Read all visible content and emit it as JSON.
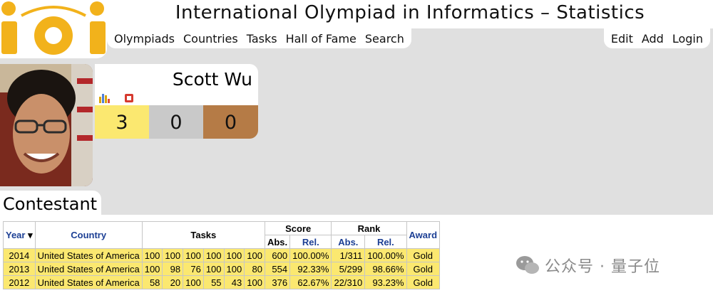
{
  "header": {
    "site_title": "International Olympiad in Informatics – Statistics",
    "logo_text": "ioi",
    "nav_left": [
      "Olympiads",
      "Countries",
      "Tasks",
      "Hall of Fame",
      "Search"
    ],
    "nav_right": [
      "Edit",
      "Add",
      "Login"
    ]
  },
  "profile": {
    "name": "Scott Wu",
    "icons": [
      "bar-chart-icon",
      "flag-icon"
    ],
    "medals": {
      "gold": "3",
      "silver": "0",
      "bronze": "0"
    }
  },
  "section_title": "Contestant",
  "table": {
    "headers": {
      "year": "Year",
      "year_sort": "▾",
      "country": "Country",
      "tasks": "Tasks",
      "score": "Score",
      "rank": "Rank",
      "award": "Award",
      "abs": "Abs.",
      "rel": "Rel."
    },
    "rows": [
      {
        "year": "2014",
        "country": "United States of America",
        "tasks": [
          "100",
          "100",
          "100",
          "100",
          "100",
          "100"
        ],
        "score_abs": "600",
        "score_rel": "100.00%",
        "rank_abs": "1/311",
        "rank_rel": "100.00%",
        "award": "Gold"
      },
      {
        "year": "2013",
        "country": "United States of America",
        "tasks": [
          "100",
          "98",
          "76",
          "100",
          "100",
          "80"
        ],
        "score_abs": "554",
        "score_rel": "92.33%",
        "rank_abs": "5/299",
        "rank_rel": "98.66%",
        "award": "Gold"
      },
      {
        "year": "2012",
        "country": "United States of America",
        "tasks": [
          "58",
          "20",
          "100",
          "55",
          "43",
          "100"
        ],
        "score_abs": "376",
        "score_rel": "62.67%",
        "rank_abs": "22/310",
        "rank_rel": "93.23%",
        "award": "Gold"
      }
    ]
  },
  "watermark": {
    "text": "公众号 · 量子位"
  },
  "colors": {
    "gold": "#fbe870",
    "silver": "#c9c9c9",
    "bronze": "#b57b46",
    "link": "#1c3f94",
    "band": "#e0e0e0"
  }
}
